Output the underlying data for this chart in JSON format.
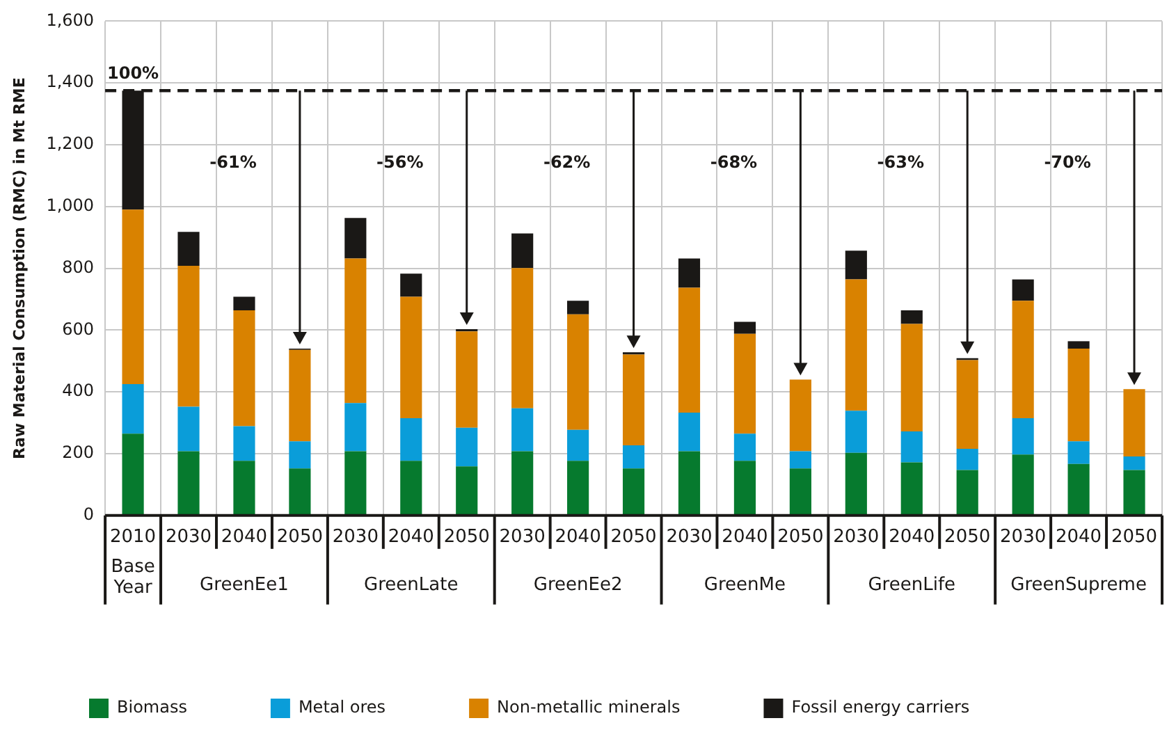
{
  "chart_data": {
    "type": "bar",
    "stacked": true,
    "ylabel": "Raw Material Consumption (RMC) in Mt RME",
    "categories": [
      "2010",
      "2030",
      "2040",
      "2050",
      "2030",
      "2040",
      "2050",
      "2030",
      "2040",
      "2050",
      "2030",
      "2040",
      "2050",
      "2030",
      "2040",
      "2050",
      "2030",
      "2040",
      "2050"
    ],
    "series": [
      {
        "name": "Biomass",
        "color": "#067a2e",
        "values": [
          265,
          208,
          177,
          152,
          208,
          177,
          159,
          208,
          177,
          152,
          208,
          177,
          152,
          203,
          172,
          147,
          197,
          167,
          147
        ]
      },
      {
        "name": "Metal ores",
        "color": "#0a9dd9",
        "values": [
          160,
          144,
          112,
          88,
          156,
          138,
          125,
          139,
          100,
          75,
          125,
          88,
          56,
          136,
          100,
          69,
          118,
          73,
          44
        ]
      },
      {
        "name": "Non-metallic minerals",
        "color": "#d98200",
        "values": [
          565,
          456,
          375,
          296,
          468,
          393,
          312,
          454,
          374,
          294,
          404,
          323,
          232,
          425,
          348,
          287,
          380,
          300,
          218
        ]
      },
      {
        "name": "Fossil energy carriers",
        "color": "#1a1816",
        "values": [
          385,
          110,
          44,
          4,
          131,
          75,
          7,
          112,
          44,
          7,
          95,
          39,
          0,
          93,
          44,
          6,
          69,
          24,
          0
        ]
      }
    ],
    "ylim": [
      0,
      1600
    ],
    "yticks": [
      0,
      {
        "value": 200,
        "label": "200"
      },
      {
        "value": 400,
        "label": "400"
      },
      {
        "value": 600,
        "label": "600"
      },
      {
        "value": 800,
        "label": "800"
      },
      {
        "value": 1000,
        "label": "1,000"
      },
      {
        "value": 1200,
        "label": "1,200"
      },
      {
        "value": 1400,
        "label": "1,400"
      },
      {
        "value": 1600,
        "label": "1,600"
      }
    ],
    "grid": true,
    "legend": "bottom",
    "ref_lines": [
      {
        "axis": "y",
        "value": 1375,
        "color": "#1a1816",
        "line_style": "dashed"
      }
    ],
    "annotations": [
      "Base Year",
      "GreenEe1",
      "GreenLate",
      "GreenEe2",
      "GreenMe",
      "GreenLife",
      "GreenSupreme",
      "-61%",
      "-56%",
      "-62%",
      "-68%",
      "-63%",
      "-70%",
      {
        "text": "100%",
        "x": "2010",
        "y": 1375
      }
    ]
  }
}
